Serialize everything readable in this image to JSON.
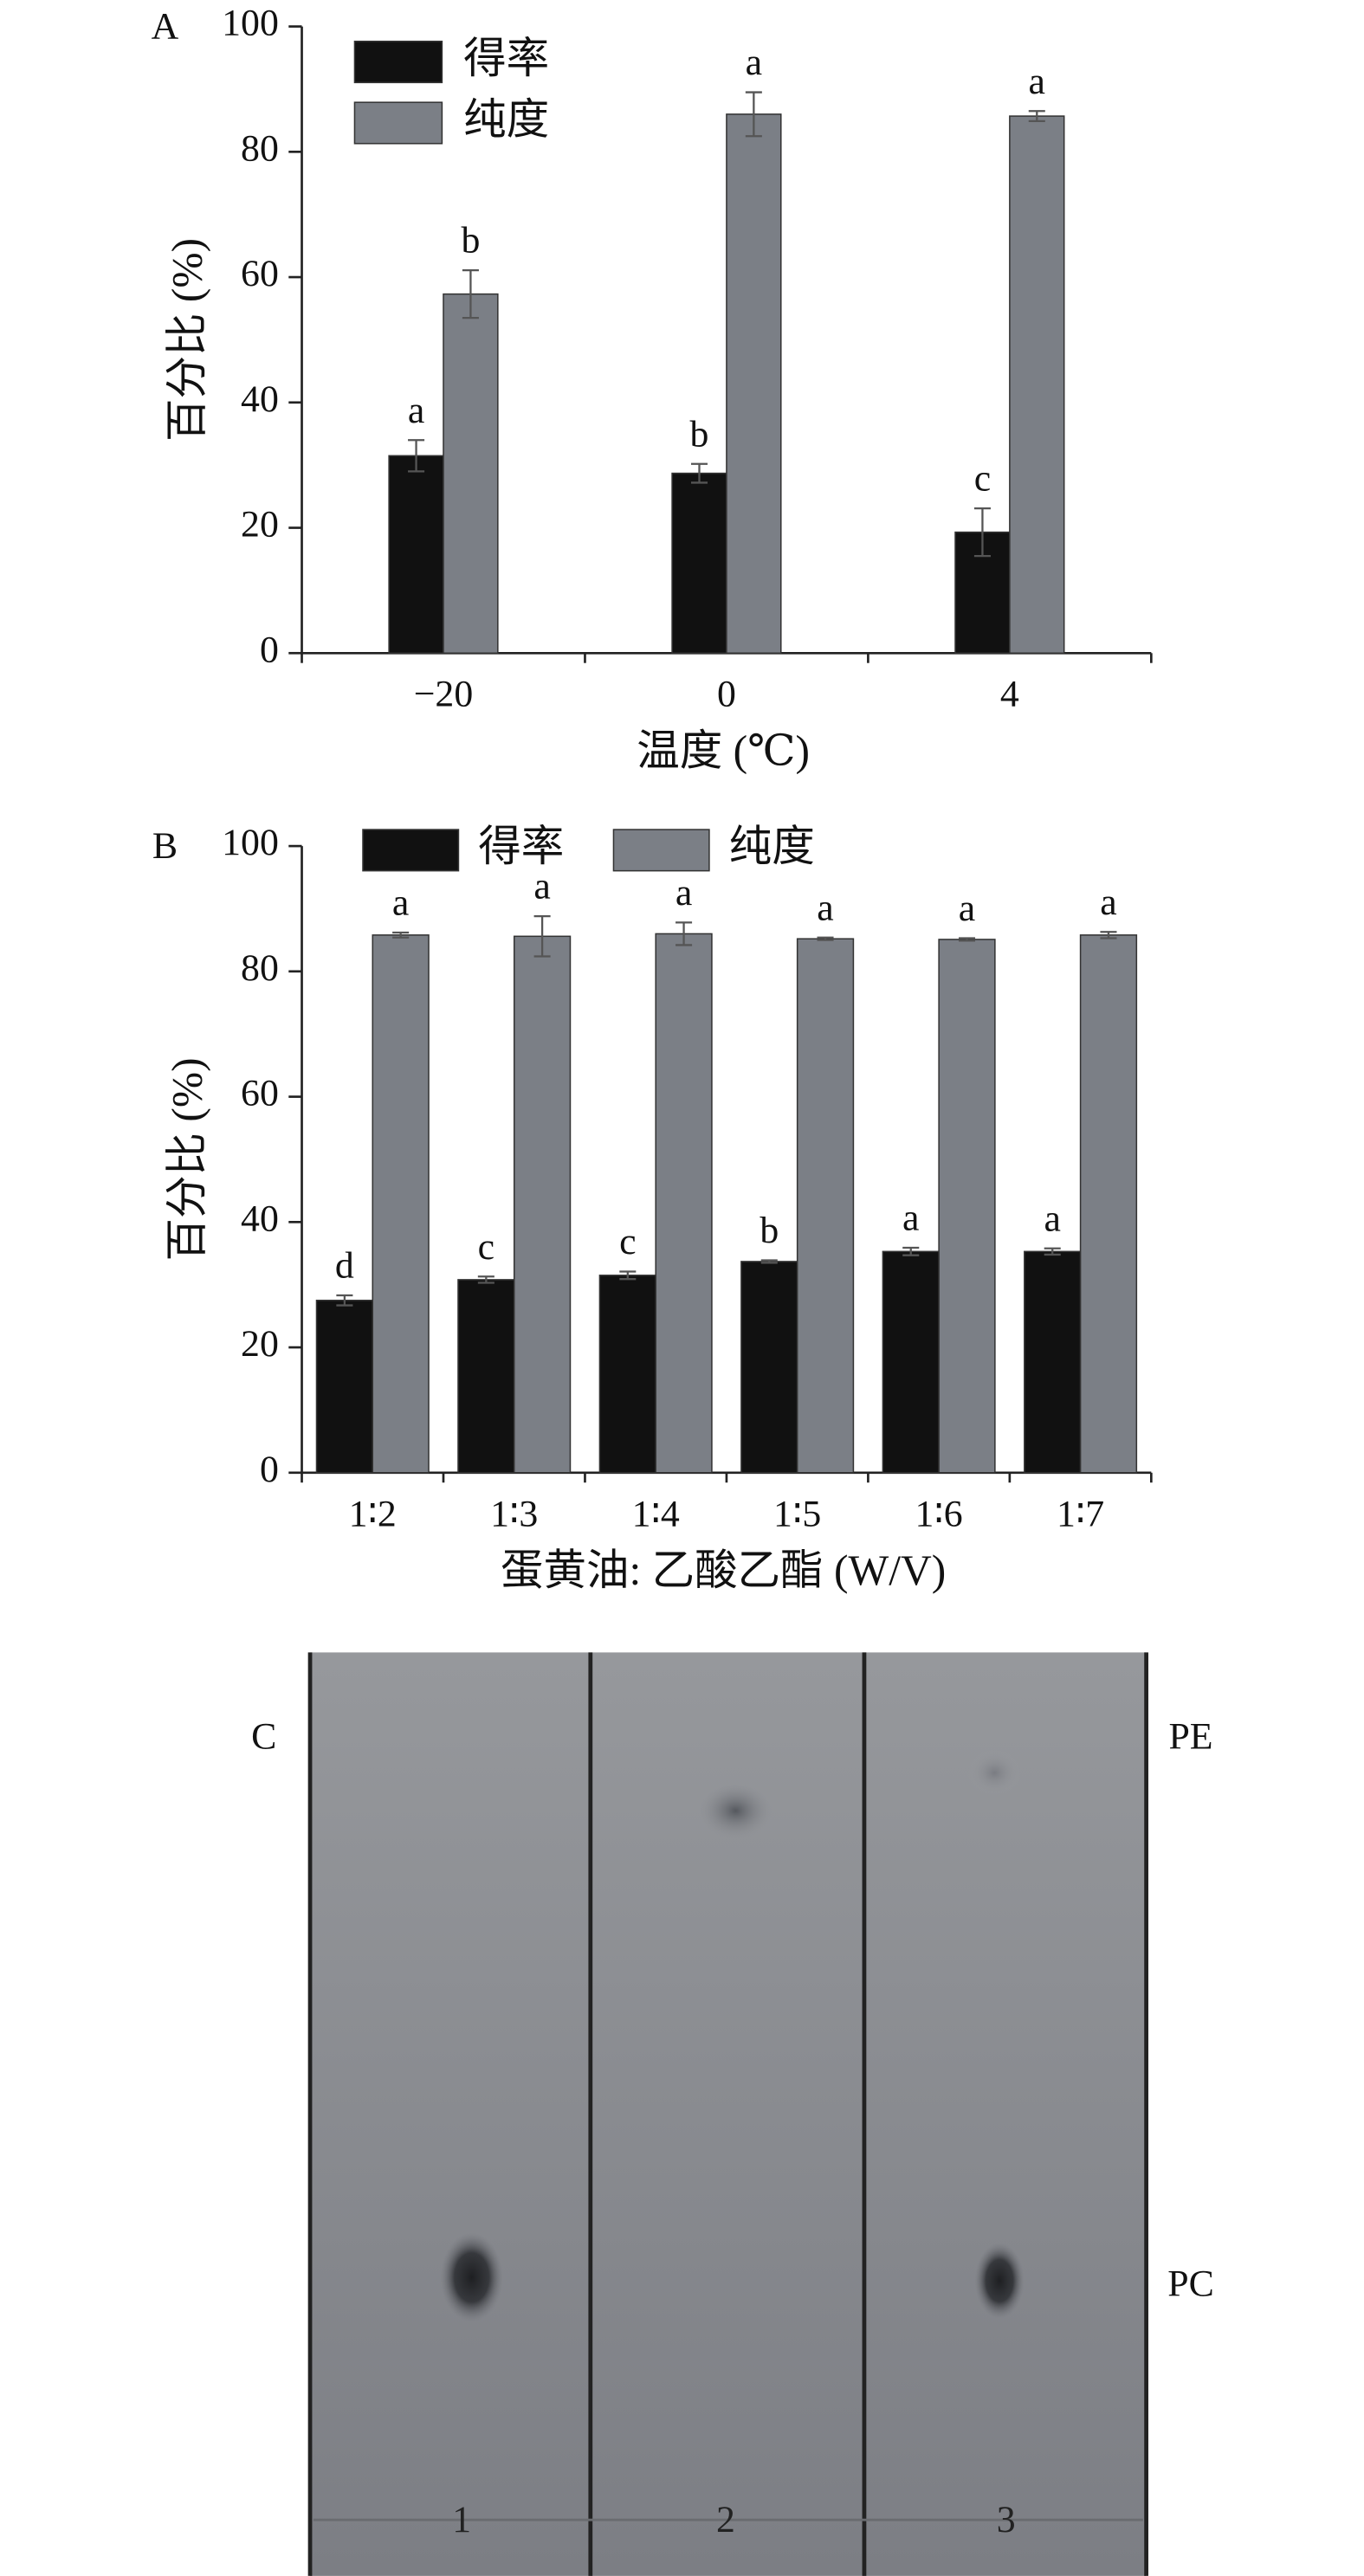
{
  "chart_data": [
    {
      "type": "bar",
      "panel": "A",
      "xlabel": "温度 (℃)",
      "ylabel": "百分比 (%)",
      "categories": [
        "−20",
        "0",
        "4"
      ],
      "series": [
        {
          "name": "得率",
          "color": "#111111",
          "values": [
            31.5,
            28.7,
            19.3
          ],
          "errors": [
            2.5,
            1.5,
            3.8
          ],
          "letters": [
            "a",
            "b",
            "c"
          ]
        },
        {
          "name": "纯度",
          "color": "#7b7f86",
          "values": [
            57.3,
            86.0,
            85.7
          ],
          "errors": [
            3.8,
            3.5,
            0.8
          ],
          "letters": [
            "b",
            "a",
            "a"
          ]
        }
      ],
      "ylim": [
        0,
        100
      ],
      "yticks": [
        0,
        20,
        40,
        60,
        80,
        100
      ],
      "legend": "upper left"
    },
    {
      "type": "bar",
      "panel": "B",
      "xlabel": "蛋黄油: 乙酸乙酯 (W/V)",
      "ylabel": "百分比 (%)",
      "categories": [
        "1∶2",
        "1∶3",
        "1∶4",
        "1∶5",
        "1∶6",
        "1∶7"
      ],
      "series": [
        {
          "name": "得率",
          "color": "#111111",
          "values": [
            27.5,
            30.8,
            31.5,
            33.7,
            35.3,
            35.3
          ],
          "errors": [
            0.8,
            0.5,
            0.6,
            0.2,
            0.6,
            0.5
          ],
          "letters": [
            "d",
            "c",
            "c",
            "b",
            "a",
            "a"
          ]
        },
        {
          "name": "纯度",
          "color": "#7b7f86",
          "values": [
            85.8,
            85.6,
            86.0,
            85.2,
            85.1,
            85.8
          ],
          "errors": [
            0.4,
            3.2,
            1.8,
            0.2,
            0.2,
            0.5
          ],
          "letters": [
            "a",
            "a",
            "a",
            "a",
            "a",
            "a"
          ]
        }
      ],
      "ylim": [
        0,
        100
      ],
      "yticks": [
        0,
        20,
        40,
        60,
        80,
        100
      ],
      "legend": "top"
    }
  ],
  "tlc": {
    "panel": "C",
    "bands": [
      "PE",
      "PC"
    ],
    "lanes": [
      "1",
      "2",
      "3"
    ]
  }
}
